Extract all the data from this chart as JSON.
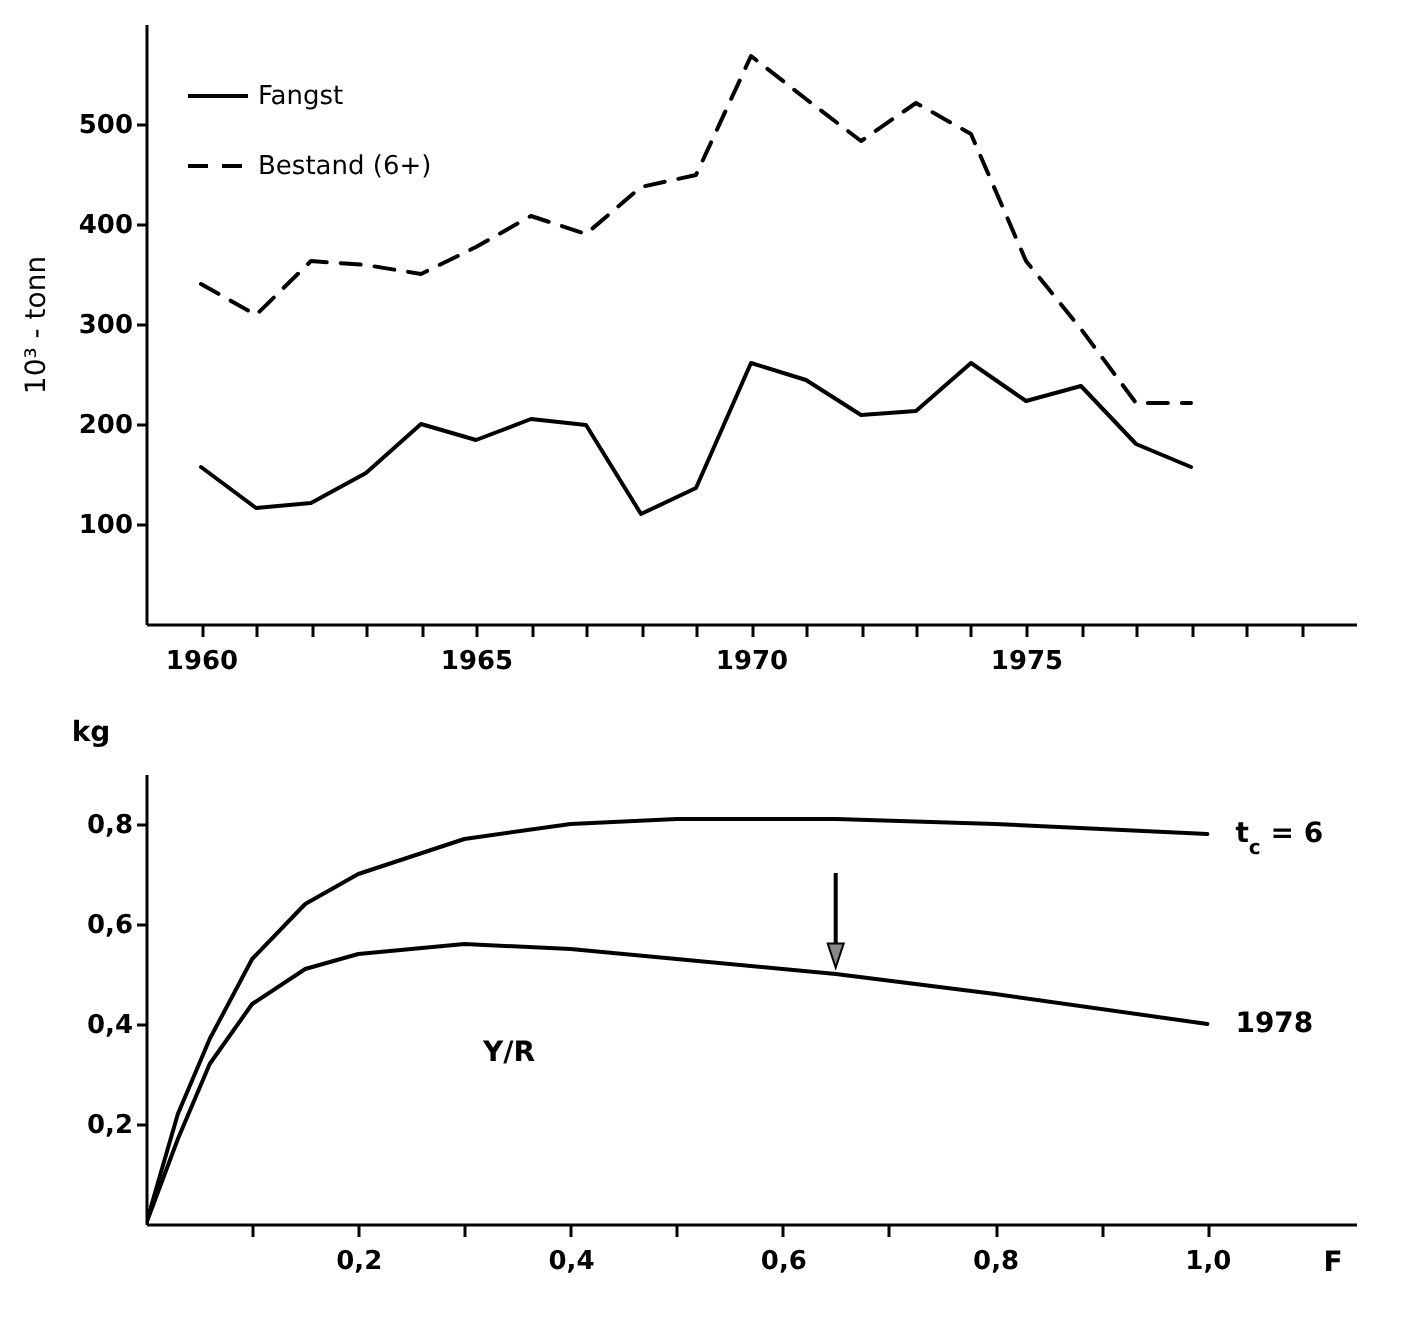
{
  "chart_data": [
    {
      "type": "line",
      "ylabel": "10³ - tonn",
      "legend": "top left",
      "x": [
        1960,
        1961,
        1962,
        1963,
        1964,
        1965,
        1966,
        1967,
        1968,
        1969,
        1970,
        1971,
        1972,
        1973,
        1974,
        1975,
        1976,
        1977,
        1978
      ],
      "series": [
        {
          "name": "Fangst",
          "color": "#000000",
          "line_style": "solid",
          "values": [
            157,
            116,
            121,
            151,
            200,
            184,
            205,
            199,
            110,
            136,
            261,
            244,
            209,
            213,
            261,
            223,
            238,
            180,
            157
          ]
        },
        {
          "name": "Bestand (6+)",
          "color": "#000000",
          "line_style": "dashed",
          "values": [
            340,
            309,
            363,
            359,
            350,
            377,
            408,
            390,
            437,
            449,
            568,
            525,
            483,
            521,
            490,
            363,
            295,
            221,
            221
          ]
        }
      ],
      "xlim": [
        1959,
        1981
      ],
      "xticks": [
        1960,
        {
          "value": 1961,
          "label": null
        },
        {
          "value": 1962,
          "label": null
        },
        {
          "value": 1963,
          "label": null
        },
        {
          "value": 1964,
          "label": null
        },
        1965,
        {
          "value": 1966,
          "label": null
        },
        {
          "value": 1967,
          "label": null
        },
        {
          "value": 1968,
          "label": null
        },
        {
          "value": 1969,
          "label": null
        },
        1970,
        {
          "value": 1971,
          "label": null
        },
        {
          "value": 1972,
          "label": null
        },
        {
          "value": 1973,
          "label": null
        },
        {
          "value": 1974,
          "label": null
        },
        1975,
        {
          "value": 1976,
          "label": null
        },
        {
          "value": 1977,
          "label": null
        },
        {
          "value": 1978,
          "label": null
        },
        {
          "value": 1979,
          "label": null
        },
        {
          "value": 1980,
          "label": null
        }
      ],
      "ylim": [
        0,
        600
      ],
      "yticks": [
        100,
        200,
        300,
        400,
        500
      ],
      "grid": false
    },
    {
      "type": "line",
      "xlabel": "F",
      "ylabel": "kg",
      "legend": false,
      "annotations": [
        "Y/R"
      ],
      "x": [
        0,
        0.03,
        0.06,
        0.1,
        0.15,
        0.2,
        0.3,
        0.4,
        0.5,
        0.6,
        0.65,
        0.8,
        1.0
      ],
      "series": [
        {
          "name": "t$_{c}$ = 6",
          "color": "#000000",
          "line_style": "solid",
          "values": [
            0,
            0.22,
            0.37,
            0.53,
            0.64,
            0.7,
            0.77,
            0.8,
            0.81,
            0.81,
            0.81,
            0.8,
            0.78
          ]
        },
        {
          "name": "1978",
          "color": "#000000",
          "line_style": "solid",
          "values": [
            0,
            0.17,
            0.32,
            0.44,
            0.51,
            0.54,
            0.56,
            0.55,
            0.53,
            0.51,
            0.5,
            0.46,
            0.4
          ]
        }
      ],
      "xlim": [
        0,
        1.14
      ],
      "xticks": [
        {
          "value": 0.1,
          "label": null
        },
        {
          "value": 0.2,
          "label": "0,2"
        },
        {
          "value": 0.3,
          "label": null
        },
        {
          "value": 0.4,
          "label": "0,4"
        },
        {
          "value": 0.5,
          "label": null
        },
        {
          "value": 0.6,
          "label": "0,6"
        },
        {
          "value": 0.7,
          "label": null
        },
        {
          "value": 0.8,
          "label": "0,8"
        },
        {
          "value": 0.9,
          "label": null
        },
        {
          "value": 1.0,
          "label": "1,0"
        }
      ],
      "ylim": [
        0,
        0.9
      ],
      "yticks": [
        {
          "value": 0.2,
          "label": "0,2"
        },
        {
          "value": 0.4,
          "label": "0,4"
        },
        {
          "value": 0.6,
          "label": "0,6"
        },
        {
          "value": 0.8,
          "label": "0,8"
        }
      ],
      "grid": false
    }
  ]
}
